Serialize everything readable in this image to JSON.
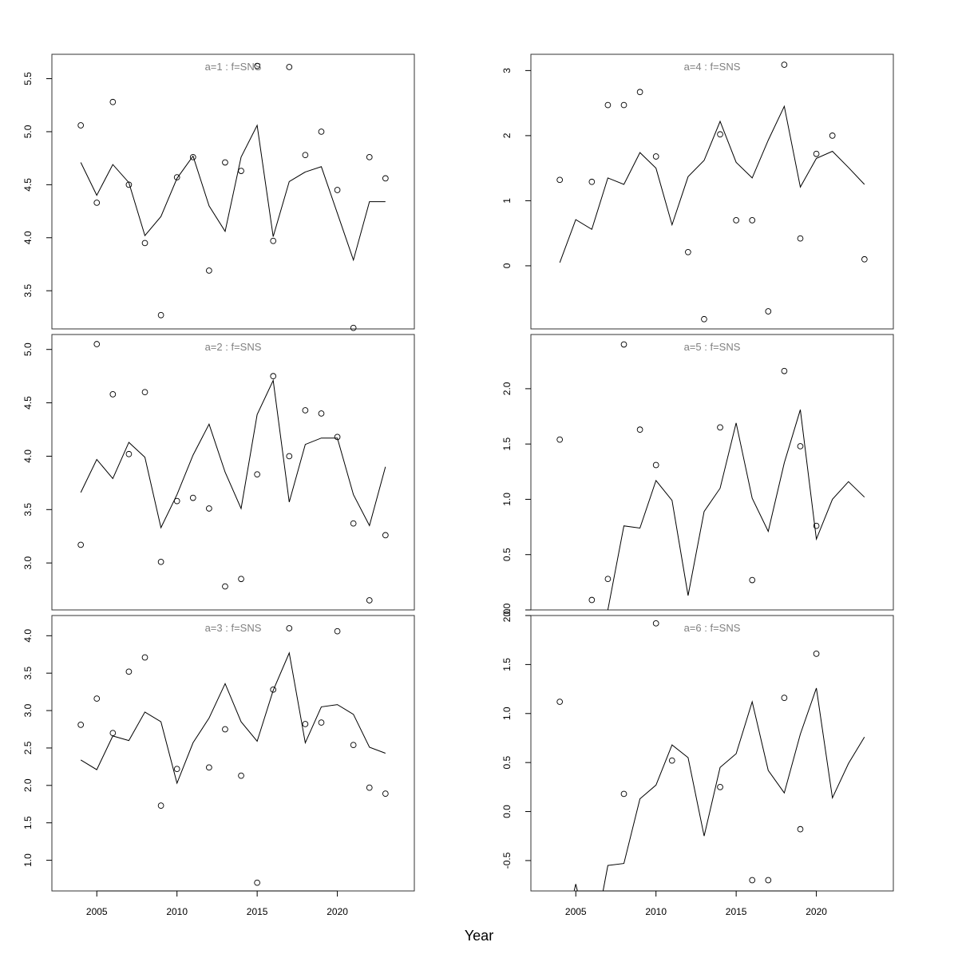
{
  "xlabel": "Year",
  "chart_data": [
    {
      "type": "line",
      "title": "a=1  :  f=SNS",
      "xlim": [
        2002.2,
        2024.8
      ],
      "ylim": [
        3.14,
        5.73
      ],
      "yticks": [
        3.5,
        4.0,
        4.5,
        5.0,
        5.5
      ],
      "ytick_labels": [
        "3.5",
        "4.0",
        "4.5",
        "5.0",
        "5.5"
      ],
      "xticks": [],
      "xtick_labels": [],
      "line": {
        "x": [
          2004,
          2005,
          2006,
          2007,
          2008,
          2009,
          2010,
          2011,
          2012,
          2013,
          2014,
          2015,
          2016,
          2017,
          2018,
          2019,
          2020,
          2021,
          2022,
          2023
        ],
        "y": [
          4.71,
          4.4,
          4.69,
          4.52,
          4.02,
          4.2,
          4.56,
          4.77,
          4.3,
          4.06,
          4.76,
          5.06,
          4.01,
          4.53,
          4.62,
          4.67,
          4.23,
          3.79,
          4.34,
          4.34
        ]
      },
      "points": {
        "x": [
          2004,
          2005,
          2006,
          2007,
          2008,
          2009,
          2010,
          2011,
          2012,
          2013,
          2014,
          2015,
          2017,
          2016,
          2018,
          2019,
          2020,
          2021,
          2022,
          2023
        ],
        "y": [
          5.06,
          4.33,
          5.28,
          4.5,
          3.95,
          3.27,
          4.57,
          4.76,
          3.69,
          4.71,
          4.63,
          5.62,
          5.61,
          3.97,
          4.78,
          5.0,
          4.45,
          3.15,
          4.76,
          4.56
        ]
      }
    },
    {
      "type": "line",
      "title": "a=4  :  f=SNS",
      "xlim": [
        2002.2,
        2024.8
      ],
      "ylim": [
        -0.97,
        3.25
      ],
      "yticks": [
        0,
        1,
        2,
        3
      ],
      "ytick_labels": [
        "0",
        "1",
        "2",
        "3"
      ],
      "xticks": [],
      "xtick_labels": [],
      "line": {
        "x": [
          2004,
          2005,
          2006,
          2007,
          2008,
          2009,
          2010,
          2011,
          2012,
          2013,
          2014,
          2015,
          2016,
          2017,
          2018,
          2019,
          2020,
          2021,
          2022,
          2023
        ],
        "y": [
          0.05,
          0.71,
          0.56,
          1.35,
          1.25,
          1.74,
          1.5,
          0.63,
          1.37,
          1.62,
          2.22,
          1.59,
          1.35,
          1.93,
          2.45,
          1.21,
          1.65,
          1.76,
          1.51,
          1.25
        ]
      },
      "points": {
        "x": [
          2004,
          2006,
          2007,
          2008,
          2009,
          2010,
          2012,
          2013,
          2014,
          2015,
          2016,
          2017,
          2018,
          2019,
          2020,
          2021,
          2023
        ],
        "y": [
          1.32,
          1.29,
          2.47,
          2.47,
          2.67,
          1.68,
          0.21,
          -0.82,
          2.02,
          0.7,
          0.7,
          -0.7,
          3.09,
          0.42,
          1.72,
          2.0,
          0.1
        ]
      }
    },
    {
      "type": "line",
      "title": "a=2  :  f=SNS",
      "xlim": [
        2002.2,
        2024.8
      ],
      "ylim": [
        2.56,
        5.14
      ],
      "yticks": [
        3.0,
        3.5,
        4.0,
        4.5,
        5.0
      ],
      "ytick_labels": [
        "3.0",
        "3.5",
        "4.0",
        "4.5",
        "5.0"
      ],
      "xticks": [],
      "xtick_labels": [],
      "line": {
        "x": [
          2004,
          2005,
          2006,
          2007,
          2008,
          2009,
          2010,
          2011,
          2012,
          2013,
          2014,
          2015,
          2016,
          2017,
          2018,
          2019,
          2020,
          2021,
          2022,
          2023
        ],
        "y": [
          3.66,
          3.97,
          3.79,
          4.13,
          3.99,
          3.33,
          3.64,
          4.01,
          4.3,
          3.85,
          3.51,
          4.39,
          4.71,
          3.57,
          4.11,
          4.17,
          4.17,
          3.64,
          3.35,
          3.9
        ]
      },
      "points": {
        "x": [
          2004,
          2005,
          2006,
          2007,
          2008,
          2009,
          2010,
          2011,
          2012,
          2013,
          2014,
          2015,
          2016,
          2017,
          2018,
          2019,
          2020,
          2021,
          2022,
          2023
        ],
        "y": [
          3.17,
          5.05,
          4.58,
          4.02,
          4.6,
          3.01,
          3.58,
          3.61,
          3.51,
          2.78,
          2.85,
          3.83,
          4.75,
          4.0,
          4.43,
          4.4,
          4.18,
          3.37,
          2.65,
          3.26
        ]
      }
    },
    {
      "type": "line",
      "title": "a=5  :  f=SNS",
      "xlim": [
        2002.2,
        2024.8
      ],
      "ylim": [
        0.0,
        2.49
      ],
      "yticks": [
        0.0,
        0.5,
        1.0,
        1.5,
        2.0
      ],
      "ytick_labels": [
        "0.0",
        "0.5",
        "1.0",
        "1.5",
        "2.0"
      ],
      "xticks": [],
      "xtick_labels": [],
      "line": {
        "x": [
          2007,
          2008,
          2009,
          2010,
          2011,
          2012,
          2013,
          2014,
          2015,
          2016,
          2017,
          2018,
          2019,
          2020,
          2021,
          2022,
          2023
        ],
        "y": [
          0.0,
          0.76,
          0.74,
          1.17,
          0.99,
          0.13,
          0.89,
          1.1,
          1.69,
          1.01,
          0.71,
          1.33,
          1.81,
          0.64,
          1.0,
          1.16,
          1.02
        ]
      },
      "points": {
        "x": [
          2004,
          2006,
          2007,
          2008,
          2009,
          2010,
          2014,
          2016,
          2018,
          2019,
          2020
        ],
        "y": [
          1.54,
          0.09,
          0.28,
          2.4,
          1.63,
          1.31,
          1.65,
          0.27,
          2.16,
          1.48,
          0.76
        ]
      }
    },
    {
      "type": "line",
      "title": "a=3  :  f=SNS",
      "xlim": [
        2002.2,
        2024.8
      ],
      "ylim": [
        0.59,
        4.27
      ],
      "yticks": [
        1.0,
        1.5,
        2.0,
        2.5,
        3.0,
        3.5,
        4.0
      ],
      "ytick_labels": [
        "1.0",
        "1.5",
        "2.0",
        "2.5",
        "3.0",
        "3.5",
        "4.0"
      ],
      "xticks": [
        2005,
        2010,
        2015,
        2020
      ],
      "xtick_labels": [
        "2005",
        "2010",
        "2015",
        "2020"
      ],
      "line": {
        "x": [
          2004,
          2005,
          2006,
          2007,
          2008,
          2009,
          2010,
          2011,
          2012,
          2013,
          2014,
          2015,
          2016,
          2017,
          2018,
          2019,
          2020,
          2021,
          2022,
          2023
        ],
        "y": [
          2.34,
          2.21,
          2.66,
          2.6,
          2.98,
          2.85,
          2.03,
          2.57,
          2.9,
          3.36,
          2.85,
          2.59,
          3.27,
          3.77,
          2.57,
          3.05,
          3.08,
          2.95,
          2.51,
          2.43
        ]
      },
      "points": {
        "x": [
          2004,
          2005,
          2006,
          2007,
          2008,
          2009,
          2010,
          2012,
          2013,
          2014,
          2015,
          2016,
          2017,
          2018,
          2019,
          2020,
          2021,
          2022,
          2023
        ],
        "y": [
          2.81,
          3.16,
          2.7,
          3.52,
          3.71,
          1.73,
          2.22,
          2.24,
          2.75,
          2.13,
          0.7,
          3.28,
          4.1,
          2.82,
          2.84,
          4.06,
          2.54,
          1.97,
          1.89
        ]
      }
    },
    {
      "type": "line",
      "title": "a=6  :  f=SNS",
      "xlim": [
        2002.2,
        2024.8
      ],
      "ylim": [
        -0.81,
        2.0
      ],
      "yticks": [
        -0.5,
        0.0,
        0.5,
        1.0,
        1.5,
        2.0
      ],
      "ytick_labels": [
        "-0.5",
        "0.0",
        "0.5",
        "1.0",
        "1.5",
        "2.0"
      ],
      "xticks": [
        2005,
        2010,
        2015,
        2020
      ],
      "xtick_labels": [
        "2005",
        "2010",
        "2015",
        "2020"
      ],
      "line": {
        "x": [
          2004.9,
          2005,
          2005.1,
          2006.7,
          2007,
          2008,
          2009,
          2010,
          2011,
          2012,
          2013,
          2014,
          2015,
          2016,
          2017,
          2018,
          2019,
          2020,
          2021,
          2022,
          2023
        ],
        "y": [
          -0.81,
          -0.74,
          -0.81,
          -0.81,
          -0.55,
          -0.53,
          0.13,
          0.27,
          0.68,
          0.55,
          -0.25,
          0.45,
          0.59,
          1.12,
          0.42,
          0.19,
          0.79,
          1.26,
          0.14,
          0.49,
          0.76
        ]
      },
      "points": {
        "x": [
          2004,
          2008,
          2010,
          2011,
          2014,
          2016,
          2017,
          2018,
          2019,
          2020
        ],
        "y": [
          1.12,
          0.18,
          1.92,
          0.52,
          0.25,
          -0.7,
          -0.7,
          1.16,
          -0.18,
          1.61
        ]
      }
    }
  ]
}
